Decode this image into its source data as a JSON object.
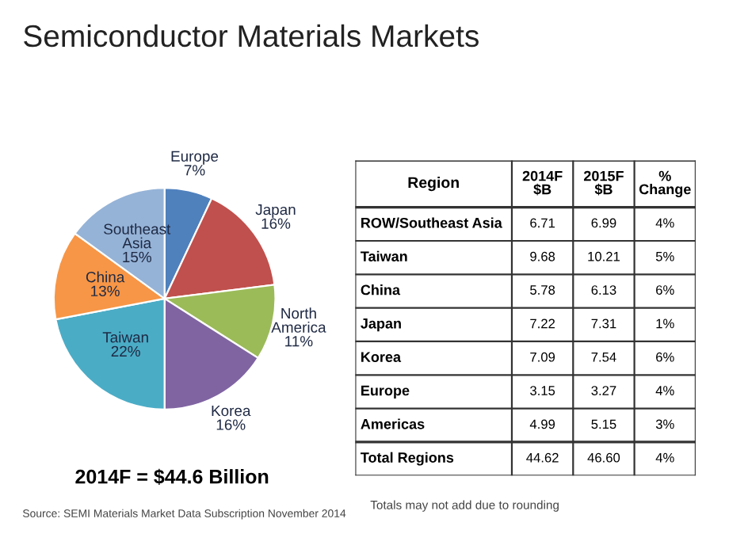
{
  "chart_data": [
    {
      "type": "pie",
      "title": "Semiconductor Materials Markets",
      "categories": [
        "Europe",
        "Japan",
        "North America",
        "Korea",
        "Taiwan",
        "China",
        "Southeast Asia"
      ],
      "values": [
        7,
        16,
        11,
        16,
        22,
        13,
        15
      ],
      "value_labels": [
        "7%",
        "16%",
        "11%",
        "16%",
        "22%",
        "13%",
        "15%"
      ],
      "colors": [
        "#4f81bd",
        "#c0504d",
        "#9bbb59",
        "#8064a2",
        "#4bacc6",
        "#f79646",
        "#95b3d7"
      ],
      "annotations": [
        "2014F = $44.6 Billion",
        "Source: SEMI Materials Market Data Subscription November 2014"
      ]
    },
    {
      "type": "other",
      "categories": [
        "Region",
        "2014F\n$B",
        "2015F\n$B",
        "%\nChange"
      ],
      "y_categories": [
        "ROW/Southeast Asia",
        "Taiwan",
        "China",
        "Japan",
        "Korea",
        "Europe",
        "Americas",
        "Total Regions"
      ],
      "cell_labels": [
        [
          "6.71",
          "6.99",
          "4%"
        ],
        [
          "9.68",
          "10.21",
          "5%"
        ],
        [
          "5.78",
          "6.13",
          "6%"
        ],
        [
          "7.22",
          "7.31",
          "1%"
        ],
        [
          "7.09",
          "7.54",
          "6%"
        ],
        [
          "3.15",
          "3.27",
          "4%"
        ],
        [
          "4.99",
          "5.15",
          "3%"
        ],
        [
          "44.62",
          "46.60",
          "4%"
        ]
      ],
      "annotations": [
        "Totals may not add due to rounding"
      ]
    }
  ]
}
